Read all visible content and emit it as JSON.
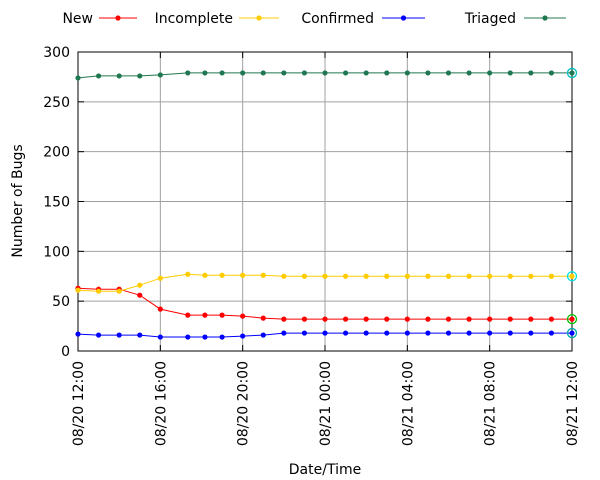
{
  "chart_data": {
    "type": "line",
    "xlabel": "Date/Time",
    "ylabel": "Number of Bugs",
    "ylim": [
      0,
      300
    ],
    "xlim": [
      "08/20 12:00",
      "08/21 12:00"
    ],
    "x_ticks": [
      "08/20 12:00",
      "08/20 16:00",
      "08/20 20:00",
      "08/21 00:00",
      "08/21 04:00",
      "08/21 08:00",
      "08/21 12:00"
    ],
    "y_ticks": [
      "0",
      "50",
      "100",
      "150",
      "200",
      "250",
      "300"
    ],
    "grid": true,
    "legend_position": "top",
    "x": [
      "08/20 12:00",
      "08/20 13:00",
      "08/20 14:00",
      "08/20 15:00",
      "08/20 16:00",
      "08/20 17:20",
      "08/20 18:10",
      "08/20 19:00",
      "08/20 20:00",
      "08/20 21:00",
      "08/20 22:00",
      "08/20 23:00",
      "08/21 00:00",
      "08/21 01:00",
      "08/21 02:00",
      "08/21 03:00",
      "08/21 04:00",
      "08/21 05:00",
      "08/21 06:00",
      "08/21 07:00",
      "08/21 08:00",
      "08/21 09:00",
      "08/21 10:00",
      "08/21 11:00",
      "08/21 12:00"
    ],
    "series": [
      {
        "name": "New",
        "color": "#ff0000",
        "values": [
          63,
          62,
          62,
          56,
          42,
          36,
          36,
          36,
          35,
          33,
          32,
          32,
          32,
          32,
          32,
          32,
          32,
          32,
          32,
          32,
          32,
          32,
          32,
          32,
          32
        ],
        "end_marker_color": "#00c000"
      },
      {
        "name": "Incomplete",
        "color": "#ffcc00",
        "values": [
          61,
          60,
          60,
          66,
          73,
          77,
          76,
          76,
          76,
          76,
          75,
          75,
          75,
          75,
          75,
          75,
          75,
          75,
          75,
          75,
          75,
          75,
          75,
          75,
          75
        ],
        "end_marker_color": "#00e0e0"
      },
      {
        "name": "Confirmed",
        "color": "#0000ff",
        "values": [
          17,
          16,
          16,
          16,
          14,
          14,
          14,
          14,
          15,
          16,
          18,
          18,
          18,
          18,
          18,
          18,
          18,
          18,
          18,
          18,
          18,
          18,
          18,
          18,
          18
        ],
        "end_marker_color": "#00aaaa"
      },
      {
        "name": "Triaged",
        "color": "#207850",
        "values": [
          274,
          276,
          276,
          276,
          277,
          279,
          279,
          279,
          279,
          279,
          279,
          279,
          279,
          279,
          279,
          279,
          279,
          279,
          279,
          279,
          279,
          279,
          279,
          279,
          279
        ],
        "end_marker_color": "#00c0c0"
      }
    ]
  }
}
